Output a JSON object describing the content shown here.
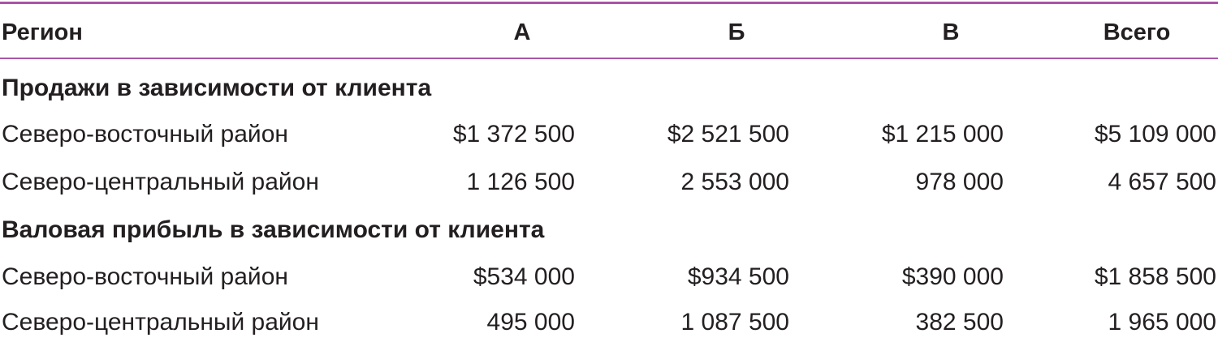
{
  "header": {
    "region": "Регион",
    "col_a": "А",
    "col_b": "Б",
    "col_v": "В",
    "col_total": "Всего"
  },
  "sections": [
    {
      "title": "Продажи в зависимости от клиента",
      "rows": [
        {
          "region": "Северо-восточный район",
          "a": "$1 372 500",
          "b": "$2 521 500",
          "v": "$1 215 000",
          "total": "$5 109 000"
        },
        {
          "region": "Северо-центральный район",
          "a": "1 126 500",
          "b": "2 553 000",
          "v": "978 000",
          "total": "4 657 500"
        }
      ]
    },
    {
      "title": "Валовая прибыль в зависимости от клиента",
      "rows": [
        {
          "region": "Северо-восточный район",
          "a": "$534 000",
          "b": "$934 500",
          "v": "$390 000",
          "total": "$1 858 500"
        },
        {
          "region": "Северо-центральный район",
          "a": "495 000",
          "b": "1 087 500",
          "v": "382 500",
          "total": "1 965 000"
        }
      ]
    }
  ],
  "colors": {
    "rule": "#a855a8",
    "text": "#231f20"
  }
}
